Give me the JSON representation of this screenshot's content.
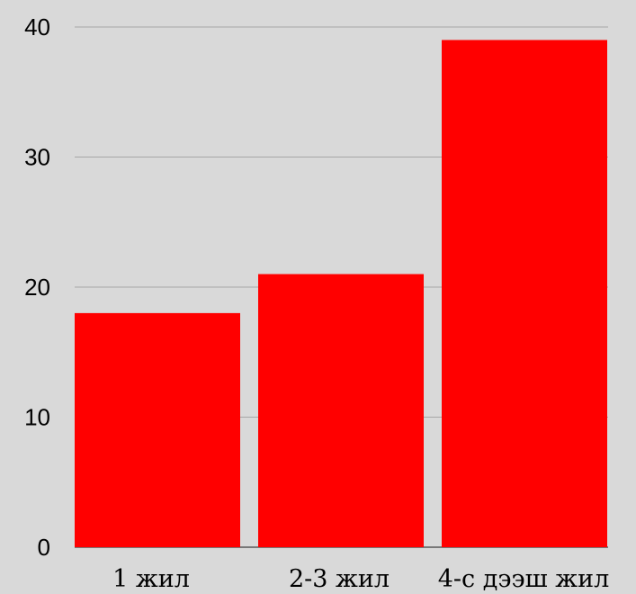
{
  "chart_data": {
    "type": "bar",
    "title": "",
    "xlabel": "",
    "ylabel": "",
    "categories": [
      "1 жил",
      "2-3 жил",
      "4-с дээш жил"
    ],
    "values": [
      18,
      21,
      39
    ],
    "ylim": [
      0,
      40
    ],
    "yticks": [
      "0",
      "10",
      "20",
      "30",
      "40"
    ],
    "grid": true,
    "legend": "none",
    "colors": {
      "bar": "#ff0000",
      "grid": "#a6a6a6",
      "background": "#d9d9d9",
      "text": "#000000"
    }
  }
}
